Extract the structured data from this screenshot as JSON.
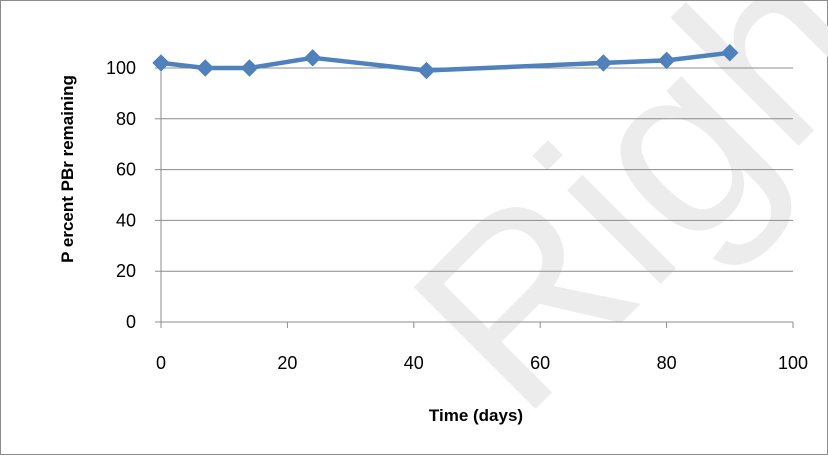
{
  "chart_data": {
    "type": "line",
    "title": "",
    "xlabel": "Time (days)",
    "ylabel": "P ercent PBr remaining",
    "xlim": [
      0,
      100
    ],
    "ylim": [
      0,
      100
    ],
    "xticks": [
      0,
      20,
      40,
      60,
      80,
      100
    ],
    "yticks": [
      0,
      20,
      40,
      60,
      80,
      100
    ],
    "grid": "horizontal",
    "legend": "none",
    "series": [
      {
        "color": "#4f81bd",
        "marker": "diamond",
        "x": [
          0,
          7,
          14,
          24,
          42,
          70,
          80,
          90
        ],
        "y": [
          102,
          100,
          100,
          104,
          99,
          102,
          103,
          106
        ]
      }
    ]
  },
  "watermark": "Rights"
}
